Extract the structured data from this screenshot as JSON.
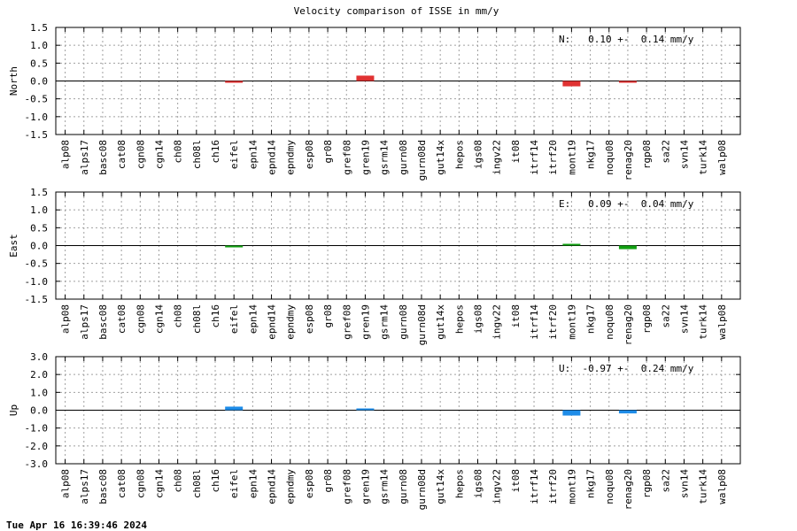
{
  "title": "Velocity comparison of ISSE in mm/y",
  "timestamp": "Tue Apr 16 16:39:46 2024",
  "stations": [
    "alp08",
    "alps17",
    "basc08",
    "cat08",
    "cgn08",
    "cgn14",
    "ch08",
    "ch08l",
    "ch16",
    "eifel",
    "epn14",
    "epnd14",
    "epndmy",
    "esp08",
    "gr08",
    "gref08",
    "gren19",
    "gsrm14",
    "gurn08",
    "gurn08d",
    "gut14x",
    "hepos",
    "igs08",
    "ingv22",
    "it08",
    "itrf14",
    "itrf20",
    "mont19",
    "nkg17",
    "noqu08",
    "renag20",
    "rgp08",
    "sa22",
    "svn14",
    "turk14",
    "walp08"
  ],
  "chart_data": [
    {
      "type": "bar",
      "ylabel": "North",
      "ylim": [
        -1.5,
        1.5
      ],
      "ytick_labels": [
        "1.5",
        "1.0",
        "0.5",
        "0.0",
        "-0.5",
        "-1.0",
        "-1.5"
      ],
      "yticks": [
        1.5,
        1.0,
        0.5,
        0.0,
        -0.5,
        -1.0,
        -1.5
      ],
      "grid": true,
      "color": "#e03232",
      "annotation": "N:   0.10 +-  0.14 mm/y",
      "bars": [
        {
          "station": "eifel",
          "value": -0.05
        },
        {
          "station": "gren19",
          "value": 0.15
        },
        {
          "station": "mont19",
          "value": -0.15
        },
        {
          "station": "renag20",
          "value": -0.03
        }
      ]
    },
    {
      "type": "bar",
      "ylabel": "East",
      "ylim": [
        -1.5,
        1.5
      ],
      "ytick_labels": [
        "1.5",
        "1.0",
        "0.5",
        "0.0",
        "-0.5",
        "-1.0",
        "-1.5"
      ],
      "yticks": [
        1.5,
        1.0,
        0.5,
        0.0,
        -0.5,
        -1.0,
        -1.5
      ],
      "grid": true,
      "color": "#12a012",
      "annotation": "E:   0.09 +-  0.04 mm/y",
      "bars": [
        {
          "station": "eifel",
          "value": -0.05
        },
        {
          "station": "mont19",
          "value": 0.02
        },
        {
          "station": "renag20",
          "value": -0.1
        }
      ]
    },
    {
      "type": "bar",
      "ylabel": "Up",
      "ylim": [
        -3.0,
        3.0
      ],
      "ytick_labels": [
        "3.0",
        "2.0",
        "1.0",
        "0.0",
        "-1.0",
        "-2.0",
        "-3.0"
      ],
      "yticks": [
        3.0,
        2.0,
        1.0,
        0.0,
        -1.0,
        -2.0,
        -3.0
      ],
      "grid": true,
      "color": "#1e8ce8",
      "annotation": "U:  -0.97 +-  0.24 mm/y",
      "bars": [
        {
          "station": "eifel",
          "value": 0.2
        },
        {
          "station": "gren19",
          "value": 0.08
        },
        {
          "station": "mont19",
          "value": -0.3
        },
        {
          "station": "renag20",
          "value": -0.18
        }
      ]
    }
  ]
}
